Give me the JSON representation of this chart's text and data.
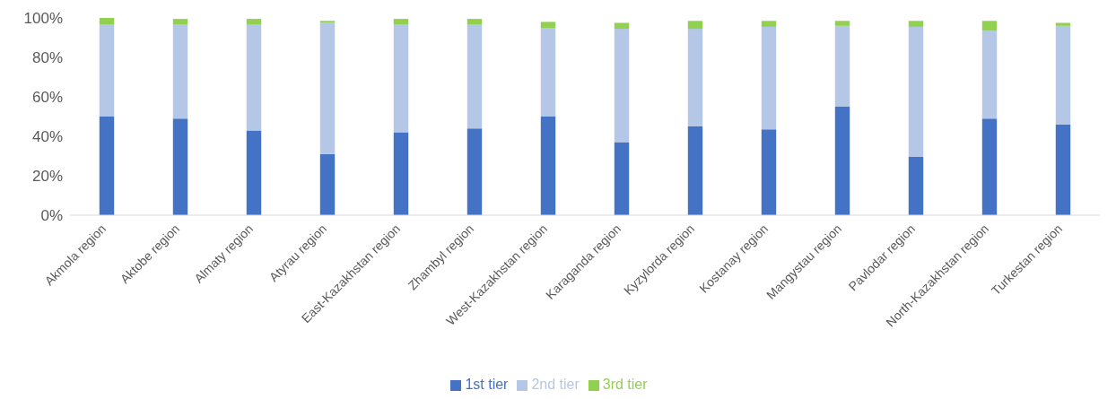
{
  "chart_data": {
    "type": "bar",
    "stacked": true,
    "categories": [
      "Akmola region",
      "Aktobe region",
      "Almaty region",
      "Atyrau region",
      "East-Kazakhstan region",
      "Zhambyl region",
      "West-Kazakhstan region",
      "Karaganda region",
      "Kyzylorda region",
      "Kostanay region",
      "Mangystau region",
      "Pavlodar region",
      "North-Kazakhstan region",
      "Turkestan region"
    ],
    "series": [
      {
        "name": "1st tier",
        "color": "#4472c4",
        "values": [
          50,
          49,
          43,
          31,
          42,
          44,
          50,
          37,
          45,
          43.5,
          55,
          29.5,
          49,
          46
        ]
      },
      {
        "name": "2nd tier",
        "color": "#b4c7e7",
        "values": [
          46.5,
          47.5,
          53.5,
          66.5,
          54.5,
          52.5,
          45,
          57.5,
          49.5,
          52,
          41,
          66,
          44.5,
          50
        ]
      },
      {
        "name": "3rd tier",
        "color": "#92d050",
        "values": [
          3.5,
          3,
          3,
          1,
          3,
          3,
          3,
          3,
          4,
          3,
          2.5,
          3,
          5,
          1.5
        ]
      }
    ],
    "ylim": [
      0,
      100
    ],
    "yticks": [
      {
        "value": 0,
        "label": "0%"
      },
      {
        "value": 20,
        "label": "20%"
      },
      {
        "value": 40,
        "label": "40%"
      },
      {
        "value": 60,
        "label": "60%"
      },
      {
        "value": 80,
        "label": "80%"
      },
      {
        "value": 100,
        "label": "100%"
      }
    ],
    "grid": false,
    "legend": "bottom"
  }
}
